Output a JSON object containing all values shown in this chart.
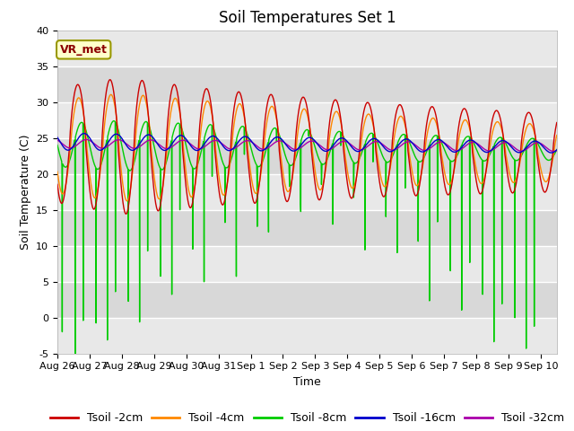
{
  "title": "Soil Temperatures Set 1",
  "xlabel": "Time",
  "ylabel": "Soil Temperature (C)",
  "ylim": [
    -5,
    40
  ],
  "xlim_days": [
    0,
    15.5
  ],
  "bg_color": "#d8d8d8",
  "stripe_color": "#e8e8e8",
  "annotation_label": "VR_met",
  "annotation_box_color": "#ffffcc",
  "annotation_border_color": "#999900",
  "series": [
    {
      "label": "Tsoil -2cm",
      "color": "#cc0000",
      "lw": 1.0
    },
    {
      "label": "Tsoil -4cm",
      "color": "#ff8800",
      "lw": 1.0
    },
    {
      "label": "Tsoil -8cm",
      "color": "#00cc00",
      "lw": 1.0
    },
    {
      "label": "Tsoil -16cm",
      "color": "#0000cc",
      "lw": 1.0
    },
    {
      "label": "Tsoil -32cm",
      "color": "#aa00aa",
      "lw": 1.0
    }
  ],
  "xtick_labels": [
    "Aug 26",
    "Aug 27",
    "Aug 28",
    "Aug 29",
    "Aug 30",
    "Aug 31",
    "Sep 1",
    "Sep 2",
    "Sep 3",
    "Sep 4",
    "Sep 5",
    "Sep 6",
    "Sep 7",
    "Sep 8",
    "Sep 9",
    "Sep 10"
  ],
  "xtick_positions": [
    0,
    1,
    2,
    3,
    4,
    5,
    6,
    7,
    8,
    9,
    10,
    11,
    12,
    13,
    14,
    15
  ],
  "ytick_positions": [
    -5,
    0,
    5,
    10,
    15,
    20,
    25,
    30,
    35,
    40
  ],
  "title_fontsize": 12,
  "axis_label_fontsize": 9,
  "tick_fontsize": 8,
  "legend_fontsize": 9
}
